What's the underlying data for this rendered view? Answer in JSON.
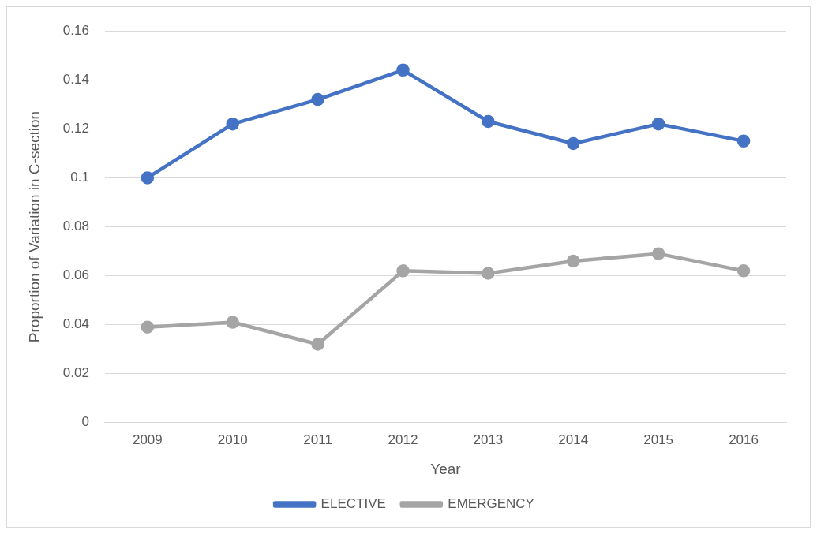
{
  "chart_data": {
    "type": "line",
    "xlabel": "Year",
    "ylabel": "Proportion of Variation in C-section",
    "categories": [
      "2009",
      "2010",
      "2011",
      "2012",
      "2013",
      "2014",
      "2015",
      "2016"
    ],
    "series": [
      {
        "name": "ELECTIVE",
        "color": "#4472c4",
        "values": [
          0.1,
          0.122,
          0.132,
          0.144,
          0.123,
          0.114,
          0.122,
          0.115
        ]
      },
      {
        "name": "EMERGENCY",
        "color": "#a5a5a5",
        "values": [
          0.039,
          0.041,
          0.032,
          0.062,
          0.061,
          0.066,
          0.069,
          0.062
        ]
      }
    ],
    "ylim": [
      0,
      0.16
    ],
    "yticks": [
      0,
      0.02,
      0.04,
      0.06,
      0.08,
      0.1,
      0.12,
      0.14,
      0.16
    ],
    "grid": "y",
    "legend": "bottom",
    "marker": "circle",
    "line_style": "solid"
  }
}
